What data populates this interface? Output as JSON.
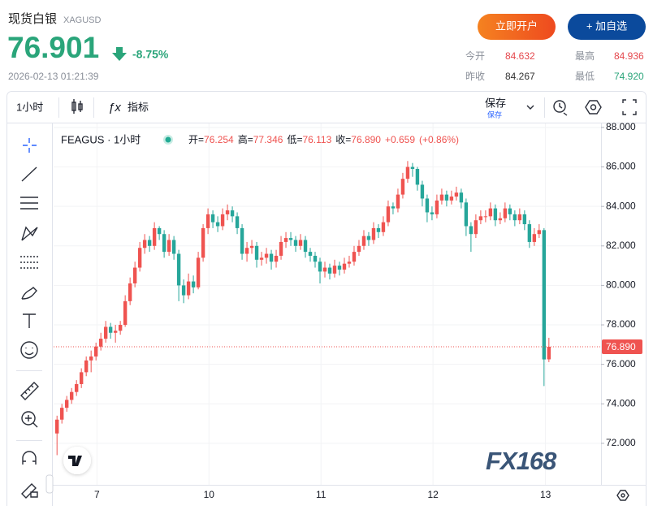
{
  "header": {
    "title": "现货白银",
    "symbol": "XAGUSD",
    "price": "76.901",
    "change": "-8.75%",
    "timestamp": "2026-02-13 01:21:39",
    "buttons": [
      "立即开户",
      "+ 加自选"
    ],
    "stats": [
      {
        "label": "今开",
        "value": "84.632"
      },
      {
        "label": "最高",
        "value": "84.936"
      },
      {
        "label": "昨收",
        "value": "84.267"
      },
      {
        "label": "最低",
        "value": "74.920"
      }
    ]
  },
  "toolbar": {
    "interval": "1小时",
    "indicators": "指标",
    "save": "保存",
    "save_sub": "保存"
  },
  "watermark": "FX168",
  "chart_data": {
    "type": "candlestick",
    "legend": {
      "title": "FEAGUS · 1小时",
      "items": [
        {
          "label": "开=",
          "value": "76.254"
        },
        {
          "label": "高=",
          "value": "77.346"
        },
        {
          "label": "低=",
          "value": "76.113"
        },
        {
          "label": "收=",
          "value": "76.890"
        }
      ],
      "change": "+0.659",
      "change_pct": "(+0.86%)"
    },
    "up_color": "#ef5350",
    "down_color": "#26a69a",
    "ylim": [
      69.98,
      88.08
    ],
    "yticks": [
      {
        "value": 72,
        "label": "72.000"
      },
      {
        "value": 74,
        "label": "74.000"
      },
      {
        "value": 76,
        "label": "76.000"
      },
      {
        "value": 78,
        "label": "78.000"
      },
      {
        "value": 80,
        "label": "80.000"
      },
      {
        "value": 82,
        "label": "82.000"
      },
      {
        "value": 84,
        "label": "84.000"
      },
      {
        "value": 86,
        "label": "86.000"
      },
      {
        "value": 88,
        "label": "88.000"
      }
    ],
    "xlim": [
      -0.7,
      111.7
    ],
    "xticks": [
      {
        "value": 8.2,
        "label": "7"
      },
      {
        "value": 31.2,
        "label": "10"
      },
      {
        "value": 54.2,
        "label": "11"
      },
      {
        "value": 77.2,
        "label": "12"
      },
      {
        "value": 100.3,
        "label": "13"
      }
    ],
    "last_price": {
      "value": 76.89,
      "label": "76.890"
    },
    "ohlc": [
      [
        72.5,
        73.4,
        71.4,
        73.2
      ],
      [
        73.2,
        74.0,
        73.0,
        73.8
      ],
      [
        73.8,
        74.4,
        73.6,
        74.2
      ],
      [
        74.2,
        74.8,
        74.0,
        74.6
      ],
      [
        74.6,
        75.2,
        74.4,
        75.0
      ],
      [
        75.0,
        75.8,
        74.8,
        75.6
      ],
      [
        75.6,
        76.4,
        75.4,
        76.2
      ],
      [
        76.2,
        76.7,
        75.6,
        76.4
      ],
      [
        76.4,
        77.1,
        76.2,
        76.9
      ],
      [
        76.9,
        77.6,
        76.7,
        77.3
      ],
      [
        77.3,
        78.2,
        77.1,
        77.9
      ],
      [
        77.9,
        78.1,
        77.3,
        77.6
      ],
      [
        77.6,
        78.0,
        77.1,
        77.7
      ],
      [
        77.7,
        78.2,
        77.5,
        78.0
      ],
      [
        78.0,
        79.5,
        77.9,
        79.2
      ],
      [
        79.2,
        80.4,
        79.0,
        80.1
      ],
      [
        80.1,
        81.2,
        79.9,
        80.9
      ],
      [
        80.9,
        82.2,
        80.7,
        81.9
      ],
      [
        81.9,
        82.6,
        81.6,
        82.3
      ],
      [
        82.3,
        82.5,
        81.7,
        82.0
      ],
      [
        82.0,
        83.2,
        81.8,
        82.9
      ],
      [
        82.9,
        83.0,
        82.3,
        82.6
      ],
      [
        82.6,
        82.8,
        81.4,
        81.7
      ],
      [
        81.7,
        82.6,
        81.5,
        82.3
      ],
      [
        82.3,
        82.5,
        81.3,
        81.6
      ],
      [
        81.6,
        81.8,
        79.2,
        80.0
      ],
      [
        80.0,
        80.3,
        79.1,
        79.5
      ],
      [
        79.5,
        80.6,
        79.3,
        80.2
      ],
      [
        80.2,
        80.5,
        79.6,
        79.9
      ],
      [
        79.9,
        81.7,
        79.8,
        81.4
      ],
      [
        81.4,
        83.1,
        81.2,
        82.9
      ],
      [
        82.9,
        83.9,
        82.6,
        83.6
      ],
      [
        83.6,
        83.8,
        82.9,
        83.2
      ],
      [
        83.2,
        83.5,
        82.7,
        83.0
      ],
      [
        83.0,
        83.9,
        82.8,
        83.6
      ],
      [
        83.6,
        84.1,
        83.3,
        83.8
      ],
      [
        83.8,
        84.0,
        83.2,
        83.5
      ],
      [
        83.5,
        83.7,
        82.6,
        82.9
      ],
      [
        82.9,
        83.1,
        81.3,
        81.6
      ],
      [
        81.6,
        82.2,
        81.2,
        81.9
      ],
      [
        81.9,
        82.3,
        81.6,
        82.0
      ],
      [
        82.0,
        82.2,
        80.9,
        81.3
      ],
      [
        81.3,
        81.7,
        81.0,
        81.4
      ],
      [
        81.4,
        81.9,
        81.1,
        81.6
      ],
      [
        81.6,
        81.8,
        80.8,
        81.2
      ],
      [
        81.2,
        81.8,
        80.9,
        81.5
      ],
      [
        81.5,
        82.5,
        81.3,
        82.2
      ],
      [
        82.2,
        82.7,
        81.9,
        82.4
      ],
      [
        82.4,
        82.7,
        82.0,
        82.3
      ],
      [
        82.3,
        82.5,
        81.7,
        82.0
      ],
      [
        82.0,
        82.6,
        81.8,
        82.3
      ],
      [
        82.3,
        82.5,
        81.4,
        81.7
      ],
      [
        81.7,
        81.9,
        81.2,
        81.5
      ],
      [
        81.5,
        81.7,
        80.9,
        81.2
      ],
      [
        81.2,
        81.4,
        80.1,
        80.7
      ],
      [
        80.7,
        81.2,
        80.4,
        80.9
      ],
      [
        80.9,
        81.1,
        80.3,
        80.6
      ],
      [
        80.6,
        81.3,
        80.4,
        81.0
      ],
      [
        81.0,
        81.2,
        80.5,
        80.8
      ],
      [
        80.8,
        81.4,
        80.6,
        81.1
      ],
      [
        81.1,
        81.5,
        80.9,
        81.2
      ],
      [
        81.2,
        82.0,
        81.0,
        81.7
      ],
      [
        81.7,
        82.3,
        81.5,
        82.0
      ],
      [
        82.0,
        82.8,
        81.8,
        82.5
      ],
      [
        82.5,
        82.7,
        82.0,
        82.3
      ],
      [
        82.3,
        83.2,
        82.1,
        82.9
      ],
      [
        82.9,
        83.1,
        82.4,
        82.7
      ],
      [
        82.7,
        83.5,
        82.5,
        83.2
      ],
      [
        83.2,
        84.3,
        83.0,
        84.0
      ],
      [
        84.0,
        84.2,
        83.6,
        83.9
      ],
      [
        83.9,
        84.9,
        83.7,
        84.6
      ],
      [
        84.6,
        85.7,
        84.4,
        85.4
      ],
      [
        85.4,
        86.3,
        85.2,
        86.0
      ],
      [
        86.0,
        86.2,
        85.5,
        85.9
      ],
      [
        85.9,
        86.0,
        84.8,
        85.1
      ],
      [
        85.1,
        85.3,
        84.0,
        84.4
      ],
      [
        84.4,
        84.6,
        83.2,
        83.7
      ],
      [
        83.7,
        84.0,
        83.3,
        83.6
      ],
      [
        83.6,
        84.6,
        83.4,
        84.3
      ],
      [
        84.3,
        84.9,
        84.1,
        84.6
      ],
      [
        84.6,
        84.8,
        84.0,
        84.3
      ],
      [
        84.3,
        84.8,
        84.1,
        84.5
      ],
      [
        84.5,
        85.0,
        84.3,
        84.7
      ],
      [
        84.7,
        84.9,
        83.9,
        84.2
      ],
      [
        84.2,
        84.4,
        82.5,
        83.0
      ],
      [
        83.0,
        83.2,
        81.7,
        82.6
      ],
      [
        82.6,
        83.6,
        82.4,
        83.3
      ],
      [
        83.3,
        83.8,
        83.1,
        83.5
      ],
      [
        83.5,
        83.8,
        83.2,
        83.5
      ],
      [
        83.5,
        84.2,
        83.3,
        83.9
      ],
      [
        83.9,
        84.1,
        83.0,
        83.3
      ],
      [
        83.3,
        83.7,
        83.1,
        83.4
      ],
      [
        83.4,
        84.2,
        83.2,
        83.9
      ],
      [
        83.9,
        84.1,
        83.3,
        83.6
      ],
      [
        83.6,
        83.8,
        83.0,
        83.3
      ],
      [
        83.3,
        83.9,
        83.1,
        83.6
      ],
      [
        83.6,
        83.8,
        82.8,
        83.1
      ],
      [
        83.1,
        83.3,
        81.9,
        82.2
      ],
      [
        82.2,
        82.9,
        82.0,
        82.6
      ],
      [
        82.6,
        83.1,
        82.4,
        82.8
      ],
      [
        82.8,
        82.9,
        74.9,
        76.25
      ],
      [
        76.254,
        77.346,
        76.113,
        76.89
      ]
    ]
  }
}
